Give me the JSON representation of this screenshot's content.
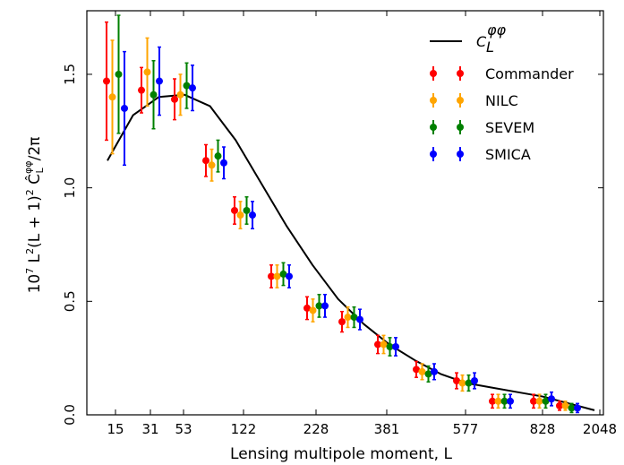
{
  "chart_data": {
    "type": "scatter",
    "xlabel": "Lensing multipole moment, L",
    "ylabel": "10^7 L^2(L+1)^2 Ĉ_L^φφ/2π",
    "x_ticks": [
      "15",
      "31",
      "53",
      "122",
      "228",
      "381",
      "577",
      "828",
      "2048"
    ],
    "y_ticks": [
      "0.0",
      "0.5",
      "1.0",
      "1.5"
    ],
    "ylim": [
      0.0,
      1.78
    ],
    "grid": false,
    "legend_position": "top-right",
    "bins": [
      "15",
      "31",
      "53",
      "~88",
      "122",
      "~170",
      "228",
      "~300",
      "381",
      "~475",
      "577",
      "~700",
      "828",
      "~1100"
    ],
    "series": [
      {
        "name": "Commander",
        "color": "#ff0000",
        "values": [
          1.47,
          1.43,
          1.39,
          1.12,
          0.9,
          0.61,
          0.47,
          0.41,
          0.31,
          0.2,
          0.15,
          0.06,
          0.06,
          0.04
        ],
        "errors": [
          0.26,
          0.1,
          0.09,
          0.07,
          0.06,
          0.05,
          0.05,
          0.045,
          0.04,
          0.035,
          0.035,
          0.03,
          0.03,
          0.02
        ]
      },
      {
        "name": "NILC",
        "color": "#ffa500",
        "values": [
          1.4,
          1.51,
          1.41,
          1.1,
          0.88,
          0.61,
          0.46,
          0.43,
          0.31,
          0.19,
          0.14,
          0.06,
          0.06,
          0.04
        ],
        "errors": [
          0.25,
          0.15,
          0.09,
          0.07,
          0.06,
          0.05,
          0.05,
          0.045,
          0.04,
          0.035,
          0.035,
          0.03,
          0.03,
          0.02
        ]
      },
      {
        "name": "SEVEM",
        "color": "#008000",
        "values": [
          1.5,
          1.41,
          1.45,
          1.14,
          0.9,
          0.62,
          0.48,
          0.43,
          0.3,
          0.18,
          0.14,
          0.06,
          0.06,
          0.03
        ],
        "errors": [
          0.26,
          0.15,
          0.1,
          0.07,
          0.06,
          0.05,
          0.05,
          0.045,
          0.04,
          0.035,
          0.035,
          0.03,
          0.03,
          0.02
        ]
      },
      {
        "name": "SMICA",
        "color": "#0000ff",
        "values": [
          1.35,
          1.47,
          1.44,
          1.11,
          0.88,
          0.61,
          0.48,
          0.42,
          0.3,
          0.19,
          0.15,
          0.06,
          0.07,
          0.03
        ],
        "errors": [
          0.25,
          0.15,
          0.1,
          0.07,
          0.06,
          0.05,
          0.05,
          0.045,
          0.04,
          0.035,
          0.035,
          0.03,
          0.03,
          0.02
        ]
      }
    ],
    "theory_curve": {
      "name": "C_L^φφ",
      "color": "#000000",
      "values": [
        1.12,
        1.32,
        1.4,
        1.41,
        1.36,
        1.21,
        1.02,
        0.83,
        0.66,
        0.51,
        0.4,
        0.31,
        0.24,
        0.18,
        0.14,
        0.12,
        0.1,
        0.08,
        0.05,
        0.02
      ]
    }
  }
}
